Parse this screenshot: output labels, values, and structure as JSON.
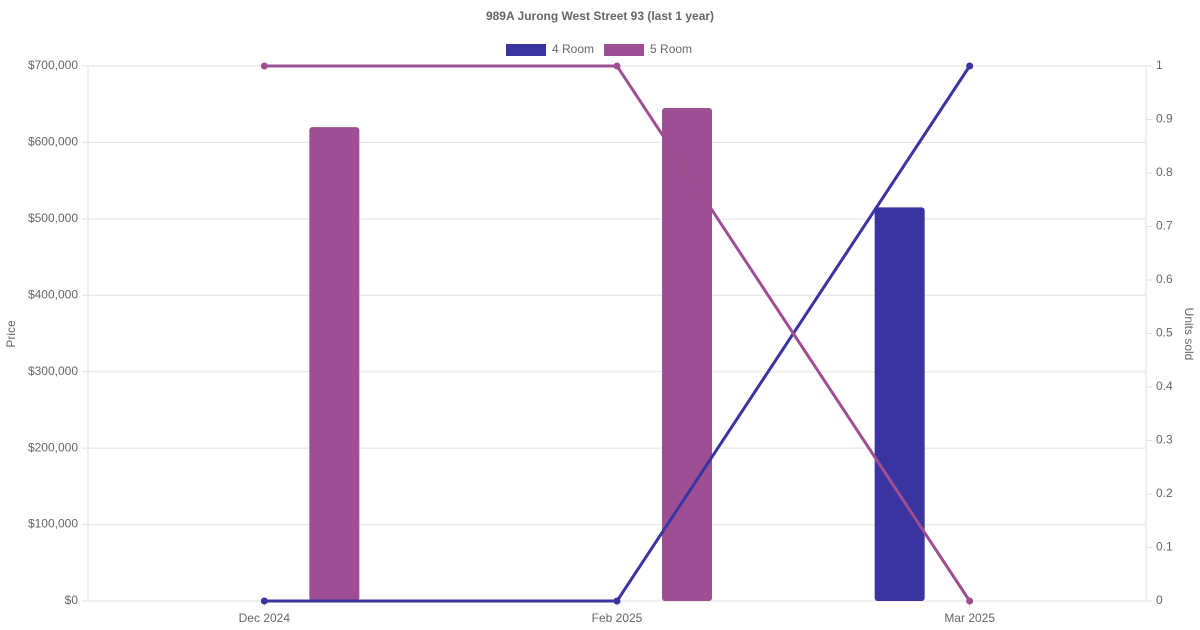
{
  "chart_data": {
    "type": "combo",
    "title": "989A Jurong West Street 93 (last 1 year)",
    "y_label": "Price",
    "y2_label": "Units sold",
    "categories": [
      "Dec 2024",
      "Feb 2025",
      "Mar 2025"
    ],
    "series": [
      {
        "name": "4 Room",
        "color": "#3a34a0",
        "values": [
          null,
          null,
          515000
        ],
        "units": [
          0,
          0,
          1
        ]
      },
      {
        "name": "5 Room",
        "color": "#9e4f93",
        "values": [
          620000,
          645000,
          null
        ],
        "units": [
          1,
          1,
          0
        ]
      }
    ],
    "ylim": [
      0,
      700000
    ],
    "yticks": [
      {
        "value": 0,
        "label": "$0"
      },
      {
        "value": 100000,
        "label": "$100,000"
      },
      {
        "value": 200000,
        "label": "$200,000"
      },
      {
        "value": 300000,
        "label": "$300,000"
      },
      {
        "value": 400000,
        "label": "$400,000"
      },
      {
        "value": 500000,
        "label": "$500,000"
      },
      {
        "value": 600000,
        "label": "$600,000"
      },
      {
        "value": 700000,
        "label": "$700,000"
      }
    ],
    "y2lim": [
      0,
      1
    ],
    "y2ticks": [
      0,
      0.1,
      0.2,
      0.3,
      0.4,
      0.5,
      0.6,
      0.7,
      0.8,
      0.9,
      1
    ],
    "grid": true
  }
}
